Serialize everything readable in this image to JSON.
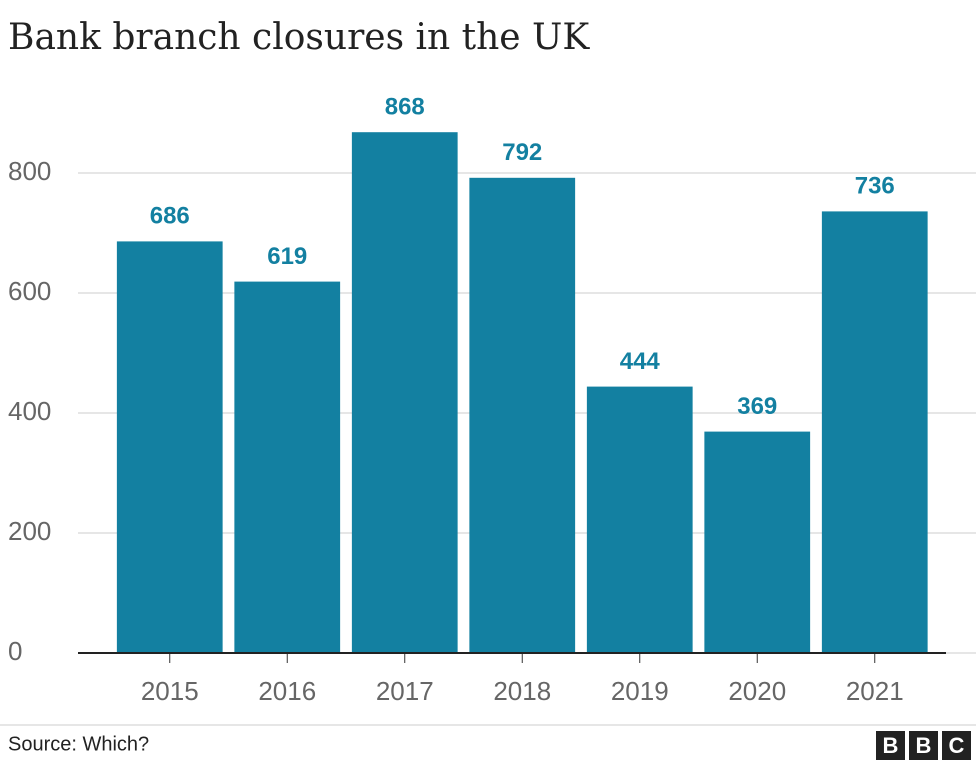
{
  "chart_data": {
    "type": "bar",
    "title": "Bank branch closures in the UK",
    "categories": [
      "2015",
      "2016",
      "2017",
      "2018",
      "2019",
      "2020",
      "2021"
    ],
    "values": [
      686,
      619,
      868,
      792,
      444,
      369,
      736
    ],
    "color": "#1380a1",
    "ylim": [
      0,
      900
    ],
    "yticks": [
      0,
      200,
      400,
      600,
      800
    ],
    "grid": true,
    "source": "Source: Which?",
    "logo": [
      "B",
      "B",
      "C"
    ]
  }
}
